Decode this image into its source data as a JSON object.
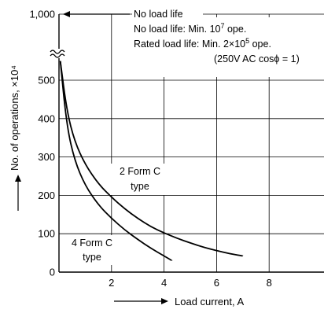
{
  "chart_data": {
    "type": "line",
    "xlabel": "Load current, A",
    "ylabel": "No. of operations, ×10⁴",
    "xlim": [
      0,
      10
    ],
    "ylim": [
      0,
      600
    ],
    "x_ticks": [
      "2",
      "4",
      "6",
      "8"
    ],
    "x_tick_values": [
      2,
      4,
      6,
      8
    ],
    "y_ticks": [
      "0",
      "100",
      "200",
      "300",
      "400",
      "500",
      "1,000"
    ],
    "y_tick_values": [
      0,
      100,
      200,
      300,
      400,
      500,
      1000
    ],
    "grid": true,
    "axis_break": "between 500 and 1,000",
    "annotations": {
      "arrow_note": "No load life",
      "line1_prefix": "No load life: Min. 10",
      "line1_sup": "7",
      "line1_suffix": " ope.",
      "line2_prefix": "Rated load life: Min. 2×10",
      "line2_sup": "5",
      "line2_suffix": " ope.",
      "line3": "(250V AC cosϕ = 1)"
    },
    "series": [
      {
        "name": "2 Form C type",
        "label_line1": "2 Form C",
        "label_line2": "type",
        "x": [
          0.05,
          0.3,
          0.6,
          1.0,
          1.5,
          2.0,
          2.5,
          3.0,
          3.5,
          4.0,
          4.5,
          5.0,
          5.5,
          6.0,
          6.5,
          7.0
        ],
        "y": [
          550,
          420,
          340,
          280,
          230,
          195,
          165,
          140,
          118,
          102,
          88,
          76,
          65,
          56,
          48,
          42
        ]
      },
      {
        "name": "4 Form C type",
        "label_line1": "4 Form C",
        "label_line2": "type",
        "x": [
          0.05,
          0.3,
          0.6,
          1.0,
          1.5,
          2.0,
          2.5,
          3.0,
          3.5,
          4.0,
          4.3
        ],
        "y": [
          550,
          380,
          290,
          225,
          175,
          140,
          110,
          85,
          62,
          42,
          30
        ]
      }
    ]
  }
}
